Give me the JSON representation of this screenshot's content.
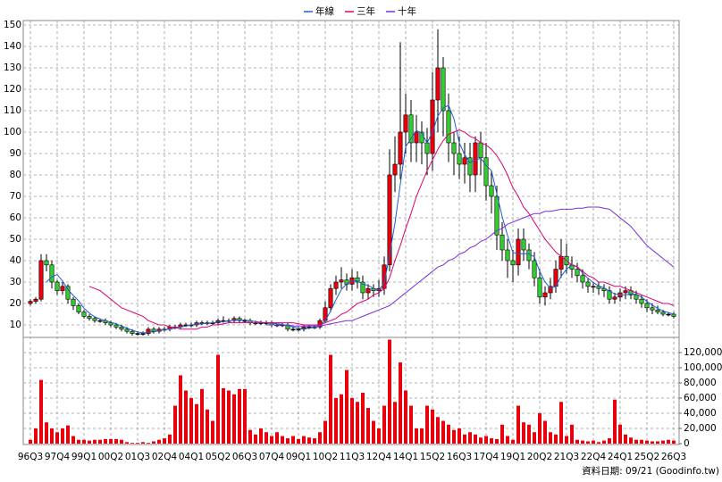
{
  "chart_data": {
    "type": "candlestick",
    "categories": [
      "96Q3",
      null,
      null,
      null,
      null,
      "97Q4",
      null,
      null,
      null,
      null,
      "99Q1",
      null,
      null,
      null,
      null,
      "00Q2",
      null,
      null,
      null,
      null,
      "01Q3",
      null,
      null,
      null,
      null,
      "02Q4",
      null,
      null,
      null,
      null,
      "04Q1",
      null,
      null,
      null,
      null,
      "05Q2",
      null,
      null,
      null,
      null,
      "06Q3",
      null,
      null,
      null,
      null,
      "07Q4",
      null,
      null,
      null,
      null,
      "09Q1",
      null,
      null,
      null,
      null,
      "10Q2",
      null,
      null,
      null,
      null,
      "11Q3",
      null,
      null,
      null,
      null,
      "12Q4",
      null,
      null,
      null,
      null,
      "14Q1",
      null,
      null,
      null,
      null,
      "15Q2",
      null,
      null,
      null,
      null,
      "16Q3",
      null,
      null,
      null,
      null,
      "17Q4",
      null,
      null,
      null,
      null,
      "19Q1",
      null,
      null,
      null,
      null,
      "20Q2",
      null,
      null,
      null,
      null,
      "21Q3",
      null,
      null,
      null,
      null,
      "22Q4",
      null,
      null,
      null,
      null,
      "24Q1",
      null,
      null,
      null,
      null,
      "25Q2",
      null,
      null,
      null,
      null,
      "26Q3"
    ],
    "open": [
      20,
      21,
      22,
      40,
      38,
      30,
      26,
      28,
      22,
      19,
      16,
      14,
      13,
      12,
      12,
      11,
      10,
      9,
      8,
      7,
      6,
      6,
      6,
      8,
      7,
      8,
      8,
      9,
      9,
      10,
      10,
      10,
      11,
      11,
      11,
      11,
      12,
      12,
      12,
      13,
      12,
      12,
      11,
      11,
      11,
      11,
      10,
      10,
      10,
      8,
      8,
      8,
      9,
      9,
      9,
      12,
      18,
      27,
      30,
      31,
      29,
      32,
      30,
      25,
      27,
      26,
      27,
      38,
      80,
      85,
      100,
      108,
      95,
      100,
      95,
      90,
      115,
      130,
      110,
      95,
      90,
      85,
      88,
      80,
      95,
      88,
      75,
      70,
      52,
      45,
      40,
      38,
      50,
      45,
      40,
      32,
      23,
      25,
      28,
      36,
      42,
      38,
      36,
      33,
      30,
      28,
      28,
      27,
      26,
      22,
      23,
      25,
      26,
      24,
      22,
      20,
      18,
      17,
      16,
      15,
      15
    ],
    "high": [
      22,
      23,
      43,
      43,
      40,
      31,
      30,
      29,
      23,
      20,
      17,
      15,
      14,
      13,
      13,
      12,
      11,
      10,
      9,
      8,
      7,
      7,
      9,
      9,
      9,
      9,
      10,
      10,
      11,
      11,
      11,
      12,
      12,
      12,
      12,
      13,
      14,
      13,
      14,
      14,
      13,
      13,
      12,
      12,
      12,
      12,
      11,
      11,
      11,
      9,
      9,
      10,
      10,
      10,
      13,
      21,
      29,
      33,
      37,
      34,
      36,
      35,
      33,
      29,
      29,
      31,
      42,
      92,
      98,
      142,
      118,
      115,
      108,
      105,
      102,
      128,
      148,
      135,
      118,
      100,
      98,
      95,
      95,
      98,
      100,
      95,
      82,
      75,
      58,
      50,
      45,
      55,
      55,
      48,
      44,
      36,
      28,
      32,
      40,
      50,
      48,
      42,
      39,
      36,
      32,
      30,
      30,
      29,
      28,
      25,
      27,
      28,
      28,
      26,
      24,
      22,
      20,
      19,
      17,
      16,
      16
    ],
    "low": [
      19,
      20,
      21,
      35,
      27,
      24,
      24,
      20,
      17,
      15,
      13,
      12,
      11,
      11,
      10,
      9,
      8,
      7,
      6,
      5,
      5,
      5,
      5,
      6,
      6,
      7,
      7,
      8,
      8,
      9,
      9,
      9,
      10,
      10,
      10,
      10,
      11,
      11,
      11,
      11,
      11,
      10,
      10,
      10,
      10,
      9,
      9,
      9,
      7,
      7,
      7,
      7,
      8,
      8,
      8,
      11,
      16,
      24,
      27,
      26,
      26,
      27,
      22,
      22,
      23,
      23,
      24,
      35,
      72,
      78,
      90,
      86,
      86,
      85,
      80,
      82,
      100,
      98,
      86,
      80,
      78,
      76,
      72,
      72,
      80,
      68,
      62,
      45,
      40,
      32,
      30,
      33,
      40,
      36,
      28,
      20,
      19,
      22,
      25,
      32,
      34,
      32,
      30,
      27,
      25,
      25,
      24,
      23,
      20,
      20,
      21,
      22,
      22,
      20,
      18,
      16,
      15,
      15,
      14,
      14,
      13
    ],
    "close": [
      21,
      22,
      40,
      38,
      30,
      26,
      28,
      22,
      19,
      16,
      14,
      13,
      12,
      12,
      11,
      10,
      9,
      8,
      7,
      6,
      6,
      6,
      8,
      7,
      8,
      8,
      9,
      9,
      10,
      10,
      10,
      11,
      11,
      11,
      11,
      12,
      12,
      12,
      13,
      12,
      12,
      11,
      11,
      11,
      11,
      10,
      10,
      10,
      8,
      8,
      8,
      9,
      9,
      9,
      12,
      18,
      27,
      30,
      31,
      29,
      32,
      30,
      25,
      27,
      26,
      27,
      38,
      80,
      85,
      100,
      108,
      95,
      100,
      95,
      90,
      115,
      130,
      110,
      95,
      90,
      85,
      88,
      80,
      95,
      88,
      75,
      70,
      52,
      45,
      40,
      38,
      50,
      45,
      40,
      32,
      23,
      25,
      28,
      36,
      42,
      38,
      36,
      33,
      30,
      28,
      28,
      27,
      26,
      22,
      23,
      25,
      26,
      24,
      22,
      20,
      18,
      17,
      16,
      15,
      15,
      14
    ],
    "up_color": "#e8000b",
    "down_color": "#33cc33",
    "series": [
      {
        "name": "年線",
        "color": "#1f5fd0",
        "values": [
          null,
          null,
          null,
          30,
          32.5,
          33.5,
          30.5,
          26.5,
          23.75,
          21.25,
          17.75,
          15.5,
          13.75,
          12.75,
          12,
          11.25,
          10.5,
          9.5,
          8.5,
          7.5,
          6.75,
          6.25,
          6.5,
          6.75,
          7.25,
          7.75,
          8,
          8.5,
          9,
          9.5,
          10,
          10.25,
          10.5,
          10.75,
          11,
          11.25,
          11.5,
          11.75,
          12.25,
          12.25,
          12.25,
          12,
          11.5,
          11.25,
          11,
          10.75,
          10.5,
          10.25,
          9.5,
          9,
          8.5,
          8.25,
          8.5,
          8.75,
          9.75,
          12,
          16.5,
          21.75,
          26.5,
          29.25,
          30.5,
          30.5,
          29,
          28.5,
          27,
          26.25,
          29.5,
          42.75,
          57.5,
          75.75,
          93.25,
          97,
          100.75,
          99.5,
          95,
          100,
          107.5,
          111.25,
          112.5,
          106.25,
          95,
          89.5,
          85.75,
          87,
          87.75,
          84.5,
          82,
          71.25,
          60.5,
          51.75,
          43.75,
          43.25,
          43.25,
          43.25,
          41.75,
          35,
          30,
          27,
          28,
          32.75,
          36,
          38,
          37.25,
          34.25,
          31.75,
          29.75,
          28.25,
          27.25,
          25.75,
          24.5,
          24,
          24,
          24.5,
          24.25,
          23,
          21,
          19.25,
          17.75,
          16.5,
          15.75,
          15
        ]
      },
      {
        "name": "三年",
        "color": "#e0006e",
        "values": [
          null,
          null,
          null,
          null,
          null,
          null,
          null,
          null,
          null,
          null,
          null,
          28,
          27,
          26,
          24,
          22,
          20,
          18,
          17,
          16,
          15,
          14,
          12,
          11,
          10,
          10,
          9,
          9,
          8,
          8,
          8,
          8,
          9,
          9,
          10,
          10,
          10.5,
          11,
          11,
          11,
          11,
          11,
          11,
          11,
          11,
          11,
          11,
          11,
          11,
          11,
          10.5,
          10,
          10,
          10,
          10,
          11,
          12,
          13,
          15,
          16,
          18,
          20,
          21,
          22,
          24,
          25,
          27,
          32,
          40,
          47,
          55,
          62,
          70,
          76,
          82,
          87,
          92,
          96,
          99,
          100,
          101,
          100,
          98,
          97,
          95,
          94,
          92,
          89,
          85,
          80,
          74,
          70,
          65,
          62,
          58,
          54,
          50,
          47,
          44,
          42,
          40,
          38,
          37,
          35,
          33,
          32,
          30,
          30,
          29,
          28,
          28,
          27,
          26,
          25,
          24,
          23,
          22,
          21,
          20,
          20,
          19
        ]
      },
      {
        "name": "十年",
        "color": "#7a2fd8",
        "values": [
          null,
          null,
          null,
          null,
          null,
          null,
          null,
          null,
          null,
          null,
          null,
          null,
          null,
          null,
          null,
          null,
          null,
          null,
          null,
          null,
          null,
          null,
          null,
          null,
          null,
          null,
          null,
          null,
          null,
          null,
          null,
          null,
          null,
          null,
          null,
          null,
          null,
          null,
          null,
          null,
          null,
          null,
          null,
          null,
          10,
          10,
          10,
          10,
          10,
          9.5,
          9.5,
          9.5,
          9.5,
          9.5,
          9.5,
          10,
          10.5,
          11,
          11.5,
          12,
          12,
          13,
          14,
          15,
          16,
          17,
          18,
          19,
          21,
          23,
          25,
          27,
          29,
          31,
          33,
          35,
          37,
          38,
          40,
          41,
          43,
          44,
          46,
          47,
          49,
          50,
          52,
          54,
          55,
          57,
          58,
          59,
          60,
          61,
          62,
          62,
          63,
          63,
          63.5,
          64,
          64,
          64,
          64.5,
          64.5,
          65,
          65,
          65,
          64.5,
          64,
          62,
          60,
          58,
          56,
          53,
          50,
          47,
          45,
          43,
          41,
          39,
          37
        ]
      },
      {
        "type": "bar",
        "axis": "y2",
        "color": "#e8000b",
        "values": [
          5000,
          20000,
          84000,
          28000,
          20000,
          15000,
          20000,
          24000,
          10000,
          5000,
          5000,
          4000,
          5000,
          5000,
          6000,
          6000,
          6000,
          5000,
          2000,
          1000,
          1000,
          2000,
          1000,
          3000,
          5000,
          7000,
          12000,
          50000,
          90000,
          70000,
          60000,
          52000,
          72000,
          45000,
          30000,
          117000,
          73000,
          70000,
          65000,
          72000,
          72000,
          18000,
          12000,
          20000,
          15000,
          10000,
          15000,
          10000,
          7000,
          10000,
          6000,
          10000,
          8000,
          7000,
          15000,
          30000,
          117000,
          60000,
          65000,
          97000,
          60000,
          55000,
          67000,
          47000,
          30000,
          20000,
          50000,
          137000,
          55000,
          107000,
          70000,
          50000,
          20000,
          20000,
          50000,
          45000,
          35000,
          30000,
          25000,
          18000,
          20000,
          12000,
          15000,
          12000,
          8000,
          10000,
          7000,
          6000,
          25000,
          10000,
          5000,
          50000,
          28000,
          25000,
          15000,
          40000,
          30000,
          15000,
          12000,
          55000,
          10000,
          25000,
          5000,
          4000,
          3000,
          4000,
          2000,
          4000,
          7000,
          58000,
          25000,
          12000,
          8000,
          5000,
          5000,
          4000,
          3000,
          3000,
          4000,
          5000,
          4000
        ]
      }
    ],
    "ylim": [
      5,
      150
    ],
    "yticks": [
      10,
      20,
      30,
      40,
      50,
      60,
      70,
      80,
      90,
      100,
      110,
      120,
      130,
      140,
      150
    ],
    "y2lim": [
      0,
      140000
    ],
    "y2ticks": [
      0,
      {
        "value": 20000,
        "label": "20,000"
      },
      {
        "value": 40000,
        "label": "40,000"
      },
      {
        "value": 60000,
        "label": "60,000"
      },
      {
        "value": 80000,
        "label": "80,000"
      },
      {
        "value": 100000,
        "label": "100,000"
      },
      {
        "value": 120000,
        "label": "120,000"
      }
    ],
    "grid": true,
    "legend": "top",
    "footer": "資料日期: 09/21 (Goodinfo.tw)"
  }
}
